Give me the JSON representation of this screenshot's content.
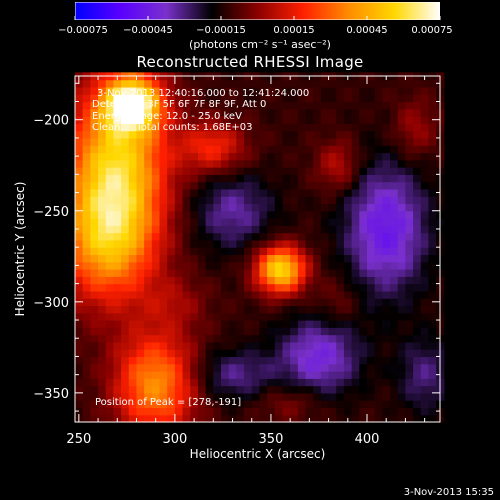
{
  "colorbar": {
    "tick_labels": [
      "-0.00075",
      "-0.00045",
      "-0.00015",
      "0.00015",
      "0.00045",
      "0.00075"
    ],
    "units_label": "(photons cm⁻² s⁻¹ asec⁻²)",
    "range": [
      -0.00075,
      0.00075
    ],
    "colormap": [
      "#0000ff",
      "#5a00ff",
      "#7a30cc",
      "#000000",
      "#8b0000",
      "#ff2000",
      "#ff8c00",
      "#ffd700",
      "#ffffff"
    ]
  },
  "image_info": {
    "time_range": "3-Nov-2013 12:40:16.000 to 12:41:24.000",
    "detectors": "Detectors: 3F 5F 6F 7F 8F 9F, Att 0",
    "energy_range": "Energy range: 12.0 - 25.0 keV",
    "method": "Clean.    Total counts: 1.68E+03",
    "peak_position": "Position of Peak = [278,-191]"
  },
  "footer": {
    "date": "3-Nov-2013 15:35"
  },
  "chart_data": {
    "type": "heatmap",
    "title": "Reconstructed RHESSI Image",
    "xlabel": "Heliocentric X (arcsec)",
    "ylabel": "Heliocentric Y (arcsec)",
    "xlim": [
      248,
      438
    ],
    "ylim": [
      -366,
      -176
    ],
    "x_ticks": [
      250,
      300,
      350,
      400
    ],
    "y_ticks": [
      -200,
      -250,
      -300,
      -350
    ],
    "x_tick_labels": [
      "250",
      "300",
      "350",
      "400"
    ],
    "y_tick_labels": [
      "-200",
      "-250",
      "-300",
      "-350"
    ],
    "peak": [
      278,
      -191
    ],
    "sources": [
      {
        "x": 270,
        "y": -220,
        "value": 0.0006,
        "sx": 18,
        "sy": 30
      },
      {
        "x": 278,
        "y": -191,
        "value": 0.00075,
        "sx": 10,
        "sy": 10
      },
      {
        "x": 265,
        "y": -265,
        "value": 0.00055,
        "sx": 18,
        "sy": 25
      },
      {
        "x": 290,
        "y": -345,
        "value": 0.0005,
        "sx": 15,
        "sy": 20
      },
      {
        "x": 355,
        "y": -282,
        "value": 0.0007,
        "sx": 9,
        "sy": 9
      },
      {
        "x": 320,
        "y": -215,
        "value": 0.0003,
        "sx": 12,
        "sy": 10
      },
      {
        "x": 385,
        "y": -225,
        "value": 0.0002,
        "sx": 8,
        "sy": 10
      },
      {
        "x": 425,
        "y": -205,
        "value": 0.00015,
        "sx": 8,
        "sy": 12
      },
      {
        "x": 300,
        "y": -300,
        "value": 0.00012,
        "sx": 12,
        "sy": 10
      },
      {
        "x": 385,
        "y": -300,
        "value": 0.0001,
        "sx": 8,
        "sy": 10
      },
      {
        "x": 360,
        "y": -355,
        "value": 0.00012,
        "sx": 12,
        "sy": 8
      },
      {
        "x": 410,
        "y": -260,
        "value": -0.00035,
        "sx": 15,
        "sy": 25
      },
      {
        "x": 375,
        "y": -330,
        "value": -0.0003,
        "sx": 15,
        "sy": 15
      },
      {
        "x": 330,
        "y": -340,
        "value": -0.0002,
        "sx": 15,
        "sy": 10
      },
      {
        "x": 330,
        "y": -250,
        "value": -0.00022,
        "sx": 15,
        "sy": 15
      },
      {
        "x": 430,
        "y": -340,
        "value": -0.00018,
        "sx": 10,
        "sy": 15
      }
    ]
  }
}
